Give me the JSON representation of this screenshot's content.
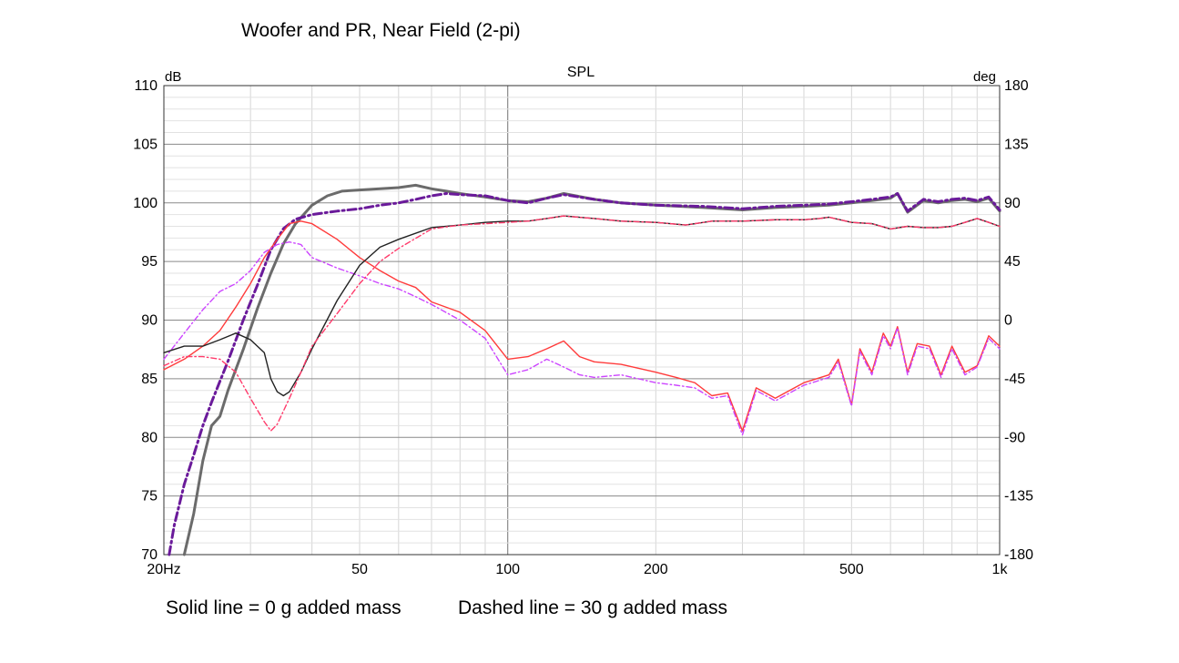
{
  "figure": {
    "title": "Woofer and PR, Near Field (2-pi)",
    "caption_solid": "Solid line = 0 g added mass",
    "caption_dashed": "Dashed line = 30 g added mass"
  },
  "chart_data": {
    "type": "line",
    "title": "SPL",
    "x_scale": "log",
    "xlim": [
      20,
      1000
    ],
    "ylim": [
      70,
      110
    ],
    "y2lim": [
      -180,
      180
    ],
    "ylabel": "dB",
    "y2label": "deg",
    "x_ticks": [
      {
        "value": 20,
        "label": "20Hz"
      },
      {
        "value": 50,
        "label": "50"
      },
      {
        "value": 100,
        "label": "100"
      },
      {
        "value": 200,
        "label": "200"
      },
      {
        "value": 500,
        "label": "500"
      },
      {
        "value": 1000,
        "label": "1k"
      }
    ],
    "y_ticks": [
      "110",
      "105",
      "100",
      "95",
      "90",
      "85",
      "80",
      "75",
      "70"
    ],
    "y2_ticks": [
      "180",
      "135",
      "90",
      "45",
      "0",
      "-45",
      "-90",
      "-135",
      "-180"
    ],
    "grid": true,
    "series": [
      {
        "color": "#6b6b6b",
        "dash": "solid",
        "axis": "dB",
        "points": [
          [
            22,
            70
          ],
          [
            23,
            73.5
          ],
          [
            24,
            78
          ],
          [
            25,
            81
          ],
          [
            26,
            81.8
          ],
          [
            27,
            84
          ],
          [
            29,
            87.5
          ],
          [
            31,
            91
          ],
          [
            33,
            94
          ],
          [
            35,
            96.5
          ],
          [
            37,
            98.2
          ],
          [
            40,
            99.8
          ],
          [
            43,
            100.6
          ],
          [
            46,
            101
          ],
          [
            50,
            101.1
          ],
          [
            55,
            101.2
          ],
          [
            60,
            101.3
          ],
          [
            65,
            101.5
          ],
          [
            70,
            101.2
          ],
          [
            75,
            101
          ],
          [
            80,
            100.8
          ],
          [
            90,
            100.5
          ],
          [
            100,
            100.2
          ],
          [
            110,
            100.1
          ],
          [
            120,
            100.4
          ],
          [
            130,
            100.8
          ],
          [
            150,
            100.3
          ],
          [
            170,
            100
          ],
          [
            200,
            99.8
          ],
          [
            250,
            99.6
          ],
          [
            300,
            99.4
          ],
          [
            350,
            99.6
          ],
          [
            400,
            99.7
          ],
          [
            450,
            99.8
          ],
          [
            500,
            100
          ],
          [
            550,
            100.2
          ],
          [
            600,
            100.4
          ],
          [
            620,
            100.8
          ],
          [
            650,
            99.2
          ],
          [
            700,
            100.2
          ],
          [
            750,
            100
          ],
          [
            800,
            100.2
          ],
          [
            850,
            100.3
          ],
          [
            900,
            100.1
          ],
          [
            950,
            100.4
          ],
          [
            1000,
            99.3
          ]
        ]
      },
      {
        "color": "#6a1a9a",
        "dash": "dashdot",
        "axis": "dB",
        "points": [
          [
            20.5,
            70
          ],
          [
            21,
            72.5
          ],
          [
            22,
            76
          ],
          [
            23,
            78.5
          ],
          [
            24,
            81
          ],
          [
            25,
            83
          ],
          [
            27,
            86.5
          ],
          [
            29,
            90
          ],
          [
            31,
            93
          ],
          [
            33,
            96
          ],
          [
            35,
            97.8
          ],
          [
            37,
            98.6
          ],
          [
            40,
            99
          ],
          [
            45,
            99.3
          ],
          [
            50,
            99.5
          ],
          [
            55,
            99.8
          ],
          [
            60,
            100
          ],
          [
            65,
            100.3
          ],
          [
            70,
            100.6
          ],
          [
            75,
            100.8
          ],
          [
            80,
            100.7
          ],
          [
            90,
            100.6
          ],
          [
            100,
            100.2
          ],
          [
            110,
            100
          ],
          [
            120,
            100.4
          ],
          [
            130,
            100.7
          ],
          [
            150,
            100.3
          ],
          [
            170,
            100
          ],
          [
            200,
            99.8
          ],
          [
            250,
            99.7
          ],
          [
            300,
            99.5
          ],
          [
            350,
            99.7
          ],
          [
            400,
            99.8
          ],
          [
            450,
            99.9
          ],
          [
            500,
            100.1
          ],
          [
            550,
            100.3
          ],
          [
            600,
            100.5
          ],
          [
            620,
            100.8
          ],
          [
            650,
            99.3
          ],
          [
            700,
            100.3
          ],
          [
            750,
            100.1
          ],
          [
            800,
            100.3
          ],
          [
            850,
            100.4
          ],
          [
            900,
            100.2
          ],
          [
            950,
            100.5
          ],
          [
            1000,
            99.4
          ]
        ]
      },
      {
        "color": "#ff3b3b",
        "dash": "solid",
        "axis": "deg",
        "points": [
          [
            20,
            -38
          ],
          [
            22,
            -30
          ],
          [
            24,
            -20
          ],
          [
            26,
            -8
          ],
          [
            28,
            10
          ],
          [
            30,
            28
          ],
          [
            32,
            48
          ],
          [
            34,
            62
          ],
          [
            36,
            74
          ],
          [
            38,
            76
          ],
          [
            40,
            74
          ],
          [
            45,
            62
          ],
          [
            50,
            48
          ],
          [
            55,
            38
          ],
          [
            60,
            30
          ],
          [
            65,
            25
          ],
          [
            70,
            14
          ],
          [
            80,
            6
          ],
          [
            90,
            -8
          ],
          [
            100,
            -30
          ],
          [
            110,
            -28
          ],
          [
            120,
            -22
          ],
          [
            130,
            -16
          ],
          [
            140,
            -28
          ],
          [
            150,
            -32
          ],
          [
            170,
            -34
          ],
          [
            200,
            -40
          ],
          [
            220,
            -44
          ],
          [
            240,
            -48
          ],
          [
            260,
            -58
          ],
          [
            280,
            -56
          ],
          [
            300,
            -85
          ],
          [
            320,
            -52
          ],
          [
            350,
            -60
          ],
          [
            400,
            -48
          ],
          [
            450,
            -42
          ],
          [
            470,
            -30
          ],
          [
            500,
            -65
          ],
          [
            520,
            -22
          ],
          [
            550,
            -40
          ],
          [
            580,
            -10
          ],
          [
            600,
            -20
          ],
          [
            620,
            -5
          ],
          [
            650,
            -40
          ],
          [
            680,
            -18
          ],
          [
            720,
            -20
          ],
          [
            760,
            -42
          ],
          [
            800,
            -20
          ],
          [
            850,
            -40
          ],
          [
            900,
            -35
          ],
          [
            950,
            -12
          ],
          [
            1000,
            -20
          ]
        ]
      },
      {
        "color": "#cc44ff",
        "dash": "dashdot",
        "axis": "deg",
        "points": [
          [
            20,
            -30
          ],
          [
            22,
            -10
          ],
          [
            24,
            8
          ],
          [
            26,
            22
          ],
          [
            28,
            28
          ],
          [
            30,
            38
          ],
          [
            32,
            52
          ],
          [
            34,
            58
          ],
          [
            36,
            60
          ],
          [
            38,
            58
          ],
          [
            40,
            48
          ],
          [
            45,
            40
          ],
          [
            50,
            34
          ],
          [
            55,
            28
          ],
          [
            60,
            24
          ],
          [
            65,
            18
          ],
          [
            70,
            12
          ],
          [
            80,
            0
          ],
          [
            90,
            -14
          ],
          [
            100,
            -42
          ],
          [
            110,
            -38
          ],
          [
            120,
            -30
          ],
          [
            130,
            -36
          ],
          [
            140,
            -42
          ],
          [
            150,
            -44
          ],
          [
            170,
            -42
          ],
          [
            200,
            -48
          ],
          [
            220,
            -50
          ],
          [
            240,
            -52
          ],
          [
            260,
            -60
          ],
          [
            280,
            -58
          ],
          [
            300,
            -88
          ],
          [
            320,
            -54
          ],
          [
            350,
            -62
          ],
          [
            400,
            -50
          ],
          [
            450,
            -44
          ],
          [
            470,
            -32
          ],
          [
            500,
            -66
          ],
          [
            520,
            -24
          ],
          [
            550,
            -42
          ],
          [
            580,
            -12
          ],
          [
            600,
            -22
          ],
          [
            620,
            -6
          ],
          [
            650,
            -42
          ],
          [
            680,
            -20
          ],
          [
            720,
            -22
          ],
          [
            760,
            -44
          ],
          [
            800,
            -22
          ],
          [
            850,
            -42
          ],
          [
            900,
            -36
          ],
          [
            950,
            -14
          ],
          [
            1000,
            -22
          ]
        ]
      },
      {
        "color": "#222222",
        "dash": "solid",
        "axis": "deg",
        "points": [
          [
            20,
            -25
          ],
          [
            22,
            -20
          ],
          [
            24,
            -20
          ],
          [
            26,
            -15
          ],
          [
            28,
            -10
          ],
          [
            30,
            -15
          ],
          [
            32,
            -25
          ],
          [
            33,
            -45
          ],
          [
            34,
            -55
          ],
          [
            35,
            -58
          ],
          [
            36,
            -55
          ],
          [
            38,
            -40
          ],
          [
            40,
            -22
          ],
          [
            45,
            15
          ],
          [
            50,
            42
          ],
          [
            55,
            56
          ],
          [
            60,
            62
          ],
          [
            70,
            71
          ],
          [
            80,
            73
          ],
          [
            90,
            75
          ],
          [
            100,
            76
          ],
          [
            110,
            76
          ],
          [
            120,
            78
          ],
          [
            130,
            80
          ],
          [
            150,
            78
          ],
          [
            170,
            76
          ],
          [
            200,
            75
          ],
          [
            230,
            73
          ],
          [
            260,
            76
          ],
          [
            300,
            76
          ],
          [
            350,
            77
          ],
          [
            400,
            77
          ],
          [
            430,
            78
          ],
          [
            450,
            79
          ],
          [
            500,
            75
          ],
          [
            550,
            74
          ],
          [
            600,
            70
          ],
          [
            650,
            72
          ],
          [
            700,
            71
          ],
          [
            750,
            71
          ],
          [
            800,
            72
          ],
          [
            850,
            75
          ],
          [
            900,
            78
          ],
          [
            950,
            75
          ],
          [
            1000,
            72
          ]
        ]
      },
      {
        "color": "#ff3b6b",
        "dash": "dashdot",
        "axis": "deg",
        "points": [
          [
            20,
            -35
          ],
          [
            22,
            -28
          ],
          [
            24,
            -28
          ],
          [
            26,
            -30
          ],
          [
            28,
            -40
          ],
          [
            30,
            -60
          ],
          [
            32,
            -78
          ],
          [
            33,
            -85
          ],
          [
            34,
            -80
          ],
          [
            36,
            -60
          ],
          [
            38,
            -40
          ],
          [
            40,
            -20
          ],
          [
            45,
            5
          ],
          [
            50,
            28
          ],
          [
            55,
            45
          ],
          [
            60,
            55
          ],
          [
            70,
            70
          ],
          [
            80,
            73
          ],
          [
            90,
            74
          ],
          [
            100,
            75
          ],
          [
            110,
            76
          ],
          [
            120,
            78
          ],
          [
            130,
            80
          ],
          [
            150,
            78
          ],
          [
            170,
            76
          ],
          [
            200,
            75
          ],
          [
            230,
            73
          ],
          [
            260,
            76
          ],
          [
            300,
            76
          ],
          [
            350,
            77
          ],
          [
            400,
            77
          ],
          [
            430,
            78
          ],
          [
            450,
            79
          ],
          [
            500,
            75
          ],
          [
            550,
            74
          ],
          [
            600,
            70
          ],
          [
            650,
            72
          ],
          [
            700,
            71
          ],
          [
            750,
            71
          ],
          [
            800,
            72
          ],
          [
            850,
            75
          ],
          [
            900,
            78
          ],
          [
            950,
            75
          ],
          [
            1000,
            72
          ]
        ]
      }
    ]
  }
}
